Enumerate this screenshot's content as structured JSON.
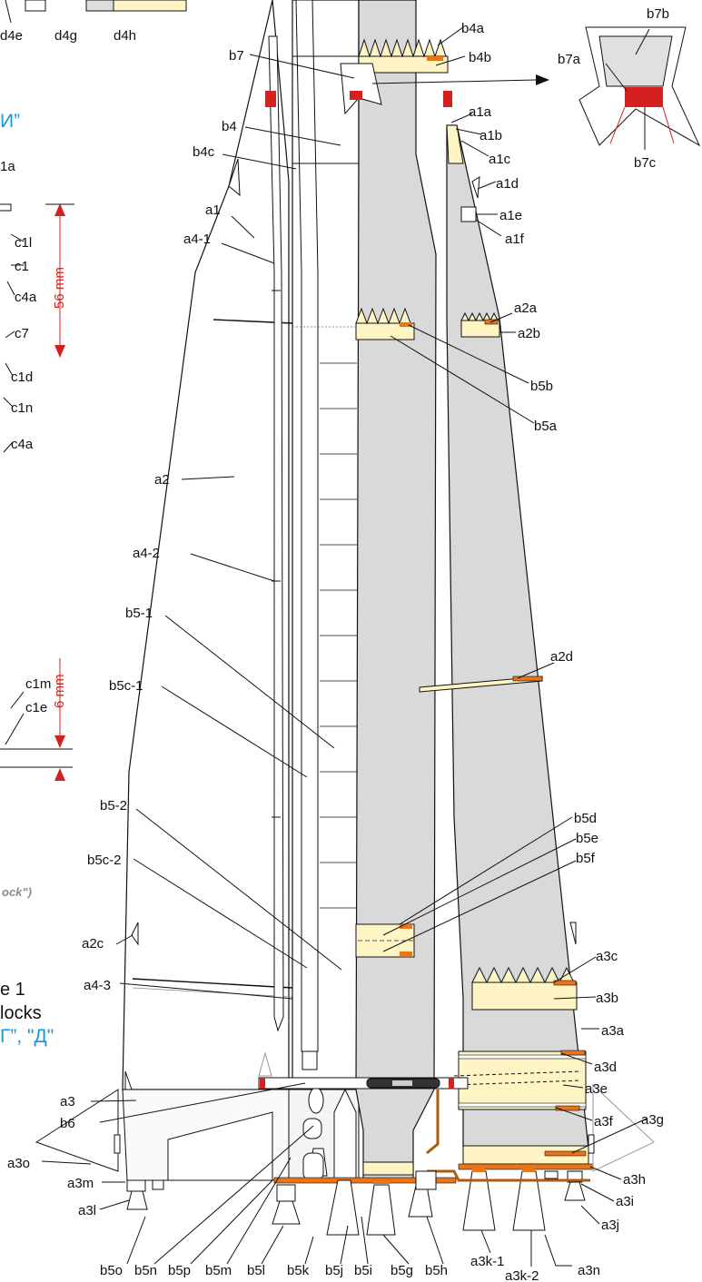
{
  "colors": {
    "panel": "#d9d9d9",
    "cream": "#fff5c4",
    "orange": "#e8751a",
    "red": "#d52020",
    "cyan": "#1a96d8",
    "outline": "#111111"
  },
  "texts": {
    "cyr_i": "И”",
    "a1a_partial": "1a",
    "figure": "e 1",
    "blocks": "locks",
    "cyr_gd": "Г”, \"Д\"",
    "note": "ock\")",
    "dim_56": "56 mm",
    "dim_6": "6 mm"
  },
  "labels": [
    {
      "id": "d4e",
      "text": "d4e"
    },
    {
      "id": "d4g",
      "text": "d4g"
    },
    {
      "id": "d4h",
      "text": "d4h"
    },
    {
      "id": "b4a",
      "text": "b4a"
    },
    {
      "id": "b4b",
      "text": "b4b"
    },
    {
      "id": "b7",
      "text": "b7"
    },
    {
      "id": "b7a",
      "text": "b7a"
    },
    {
      "id": "b7b",
      "text": "b7b"
    },
    {
      "id": "b7c",
      "text": "b7c"
    },
    {
      "id": "a1a",
      "text": "a1a"
    },
    {
      "id": "a1b",
      "text": "a1b"
    },
    {
      "id": "a1c",
      "text": "a1c"
    },
    {
      "id": "a1d",
      "text": "a1d"
    },
    {
      "id": "a1e",
      "text": "a1e"
    },
    {
      "id": "a1f",
      "text": "a1f"
    },
    {
      "id": "b4",
      "text": "b4"
    },
    {
      "id": "b4c",
      "text": "b4c"
    },
    {
      "id": "a1",
      "text": "a1"
    },
    {
      "id": "a4-1",
      "text": "a4-1"
    },
    {
      "id": "c1l",
      "text": "c1l"
    },
    {
      "id": "c1",
      "text": "c1"
    },
    {
      "id": "c4a_1",
      "text": "c4a"
    },
    {
      "id": "c7",
      "text": "c7"
    },
    {
      "id": "c1d",
      "text": "c1d"
    },
    {
      "id": "c1n",
      "text": "c1n"
    },
    {
      "id": "c4a_2",
      "text": "c4a"
    },
    {
      "id": "a2a",
      "text": "a2a"
    },
    {
      "id": "a2b",
      "text": "a2b"
    },
    {
      "id": "b5b",
      "text": "b5b"
    },
    {
      "id": "b5a",
      "text": "b5a"
    },
    {
      "id": "a2",
      "text": "a2"
    },
    {
      "id": "a4-2",
      "text": "a4-2"
    },
    {
      "id": "b5-1",
      "text": "b5-1"
    },
    {
      "id": "a2d",
      "text": "a2d"
    },
    {
      "id": "c1m",
      "text": "c1m"
    },
    {
      "id": "c1e",
      "text": "c1e"
    },
    {
      "id": "b5c-1",
      "text": "b5c-1"
    },
    {
      "id": "b5-2",
      "text": "b5-2"
    },
    {
      "id": "b5d",
      "text": "b5d"
    },
    {
      "id": "b5e",
      "text": "b5e"
    },
    {
      "id": "b5f",
      "text": "b5f"
    },
    {
      "id": "b5c-2",
      "text": "b5c-2"
    },
    {
      "id": "a2c",
      "text": "a2c"
    },
    {
      "id": "a3c",
      "text": "a3c"
    },
    {
      "id": "a4-3",
      "text": "a4-3"
    },
    {
      "id": "a3b",
      "text": "a3b"
    },
    {
      "id": "a3a",
      "text": "a3a"
    },
    {
      "id": "a3d",
      "text": "a3d"
    },
    {
      "id": "a3e",
      "text": "a3e"
    },
    {
      "id": "a3",
      "text": "a3"
    },
    {
      "id": "b6",
      "text": "b6"
    },
    {
      "id": "a3f",
      "text": "a3f"
    },
    {
      "id": "a3g",
      "text": "a3g"
    },
    {
      "id": "a3o",
      "text": "a3o"
    },
    {
      "id": "a3h",
      "text": "a3h"
    },
    {
      "id": "a3m",
      "text": "a3m"
    },
    {
      "id": "a3i",
      "text": "a3i"
    },
    {
      "id": "a3l",
      "text": "a3l"
    },
    {
      "id": "a3j",
      "text": "a3j"
    },
    {
      "id": "b5o",
      "text": "b5o"
    },
    {
      "id": "b5n",
      "text": "b5n"
    },
    {
      "id": "b5p",
      "text": "b5p"
    },
    {
      "id": "b5m",
      "text": "b5m"
    },
    {
      "id": "b5l",
      "text": "b5l"
    },
    {
      "id": "b5k",
      "text": "b5k"
    },
    {
      "id": "b5j",
      "text": "b5j"
    },
    {
      "id": "b5i",
      "text": "b5i"
    },
    {
      "id": "b5g",
      "text": "b5g"
    },
    {
      "id": "b5h",
      "text": "b5h"
    },
    {
      "id": "a3k-1",
      "text": "a3k-1"
    },
    {
      "id": "a3k-2",
      "text": "a3k-2"
    },
    {
      "id": "a3n",
      "text": "a3n"
    }
  ]
}
